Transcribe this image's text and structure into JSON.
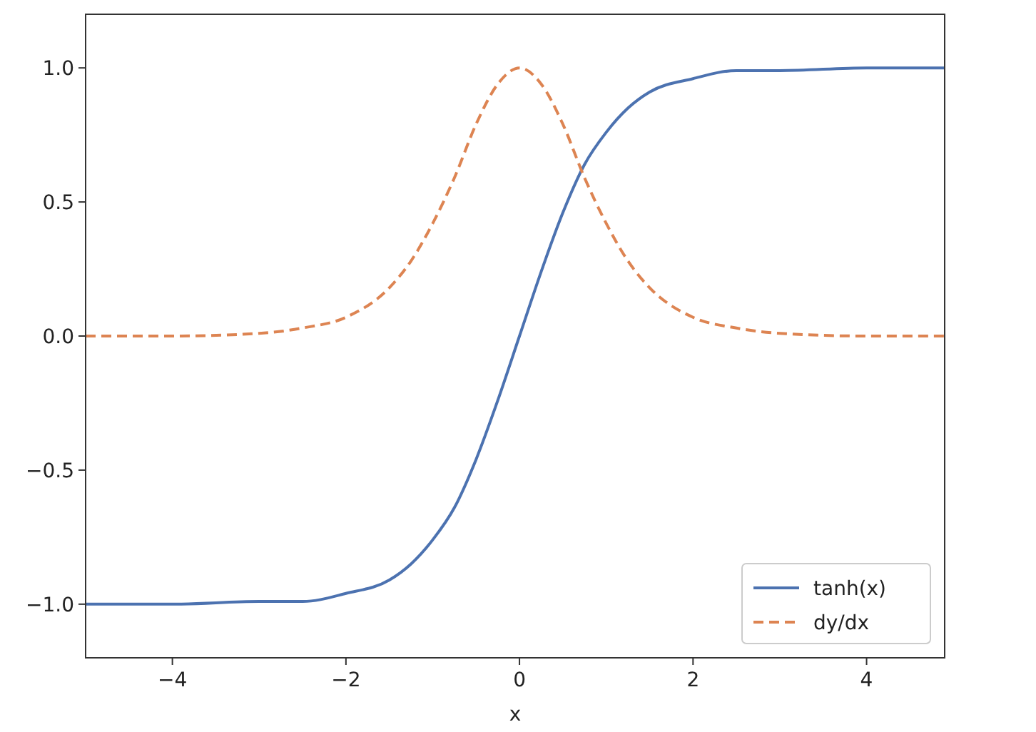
{
  "chart_data": {
    "type": "line",
    "xlabel": "x",
    "xlim": [
      -5,
      4.9
    ],
    "ylim": [
      -1.2,
      1.2
    ],
    "xticks": [
      {
        "value": -4,
        "label": "−4"
      },
      {
        "value": -2,
        "label": "−2"
      },
      0,
      2,
      4
    ],
    "yticks": [
      {
        "value": -1,
        "label": "−1.0"
      },
      {
        "value": -0.5,
        "label": "−0.5"
      },
      {
        "value": 0,
        "label": "0.0"
      },
      {
        "value": 0.5,
        "label": "0.5"
      },
      {
        "value": 1,
        "label": "1.0"
      }
    ],
    "legend": "bottom right",
    "grid": false,
    "series": [
      {
        "name": "tanh(x)",
        "color": "#4c72b0",
        "line_style": "solid",
        "x": [
          -5,
          -4,
          -3,
          -2.5,
          -2,
          -1.5,
          -1.25,
          -1,
          -0.75,
          -0.5,
          -0.25,
          0,
          0.25,
          0.5,
          0.75,
          1,
          1.25,
          1.5,
          2,
          2.5,
          3,
          4,
          4.9
        ],
        "values": [
          -1,
          -1,
          -0.99,
          -0.99,
          -0.96,
          -0.91,
          -0.85,
          -0.76,
          -0.64,
          -0.46,
          -0.24,
          0,
          0.24,
          0.46,
          0.64,
          0.76,
          0.85,
          0.91,
          0.96,
          0.99,
          0.99,
          1,
          1
        ]
      },
      {
        "name": "dy/dx",
        "color": "#dd8452",
        "line_style": "dashed",
        "x": [
          -5,
          -4,
          -3,
          -2.5,
          -2,
          -1.5,
          -1.25,
          -1,
          -0.75,
          -0.5,
          -0.25,
          0,
          0.25,
          0.5,
          0.75,
          1,
          1.25,
          1.5,
          2,
          2.5,
          3,
          4,
          4.9
        ],
        "values": [
          0,
          0,
          0.01,
          0.03,
          0.07,
          0.18,
          0.28,
          0.42,
          0.59,
          0.79,
          0.94,
          1,
          0.94,
          0.79,
          0.59,
          0.42,
          0.28,
          0.18,
          0.07,
          0.03,
          0.01,
          0,
          0
        ]
      }
    ]
  }
}
